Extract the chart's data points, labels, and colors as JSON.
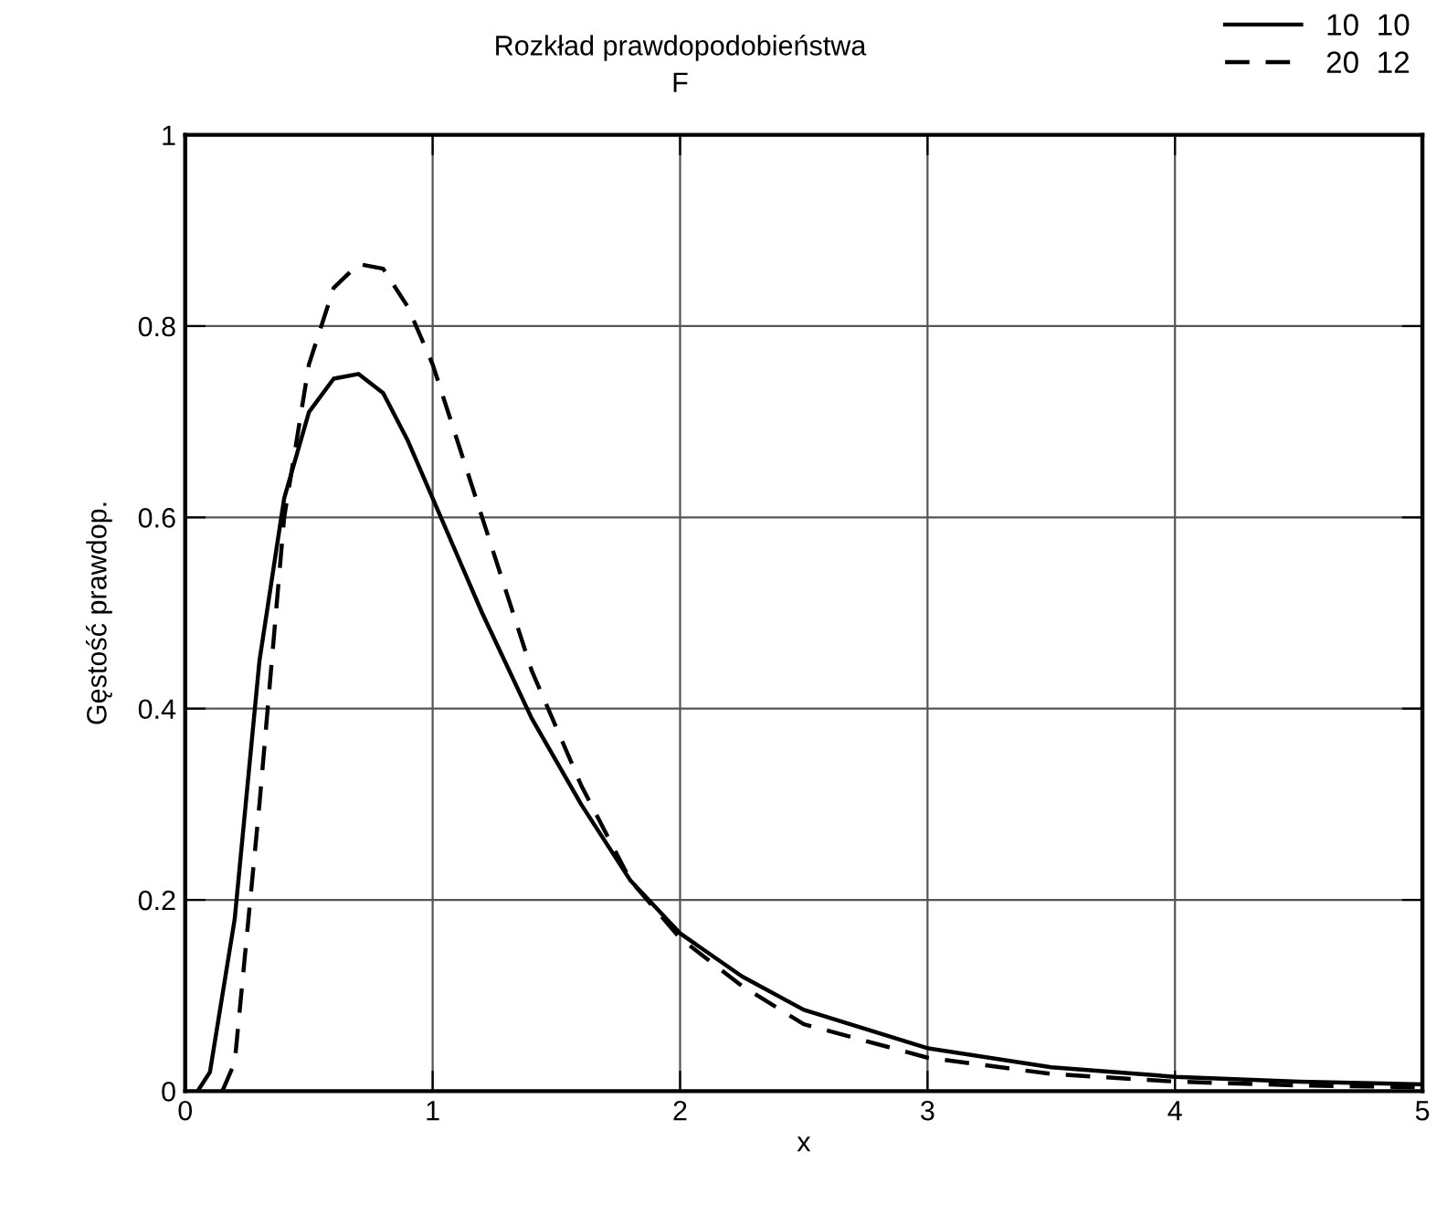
{
  "chart_data": {
    "type": "line",
    "title": "Rozkład prawdopodobieństwa",
    "subtitle": "F",
    "xlabel": "x",
    "ylabel": "Gęstość prawdop.",
    "xlim": [
      0,
      5
    ],
    "ylim": [
      0,
      1
    ],
    "xticks": [
      0,
      1,
      2,
      3,
      4,
      5
    ],
    "yticks": [
      0,
      0.2,
      0.4,
      0.6,
      0.8,
      1
    ],
    "grid": true,
    "legend": "top right",
    "marker": "none",
    "series": [
      {
        "name": "10  10",
        "color": "#000000",
        "line_style": "solid",
        "x": [
          0.05,
          0.1,
          0.2,
          0.3,
          0.4,
          0.5,
          0.6,
          0.7,
          0.8,
          0.9,
          1.0,
          1.2,
          1.4,
          1.6,
          1.8,
          2.0,
          2.25,
          2.5,
          3.0,
          3.5,
          4.0,
          4.5,
          5.0
        ],
        "values": [
          0,
          0.02,
          0.18,
          0.45,
          0.62,
          0.71,
          0.745,
          0.75,
          0.73,
          0.68,
          0.62,
          0.5,
          0.39,
          0.3,
          0.22,
          0.165,
          0.12,
          0.085,
          0.045,
          0.025,
          0.015,
          0.01,
          0.007
        ]
      },
      {
        "name": "20  12",
        "color": "#000000",
        "line_style": "dashed",
        "x": [
          0.15,
          0.2,
          0.3,
          0.4,
          0.5,
          0.6,
          0.7,
          0.8,
          0.9,
          1.0,
          1.2,
          1.4,
          1.6,
          1.8,
          2.0,
          2.25,
          2.5,
          3.0,
          3.5,
          4.0,
          4.5,
          5.0
        ],
        "values": [
          0,
          0.03,
          0.3,
          0.6,
          0.76,
          0.84,
          0.865,
          0.86,
          0.82,
          0.76,
          0.6,
          0.44,
          0.32,
          0.22,
          0.16,
          0.11,
          0.07,
          0.035,
          0.018,
          0.01,
          0.006,
          0.004
        ]
      }
    ]
  }
}
